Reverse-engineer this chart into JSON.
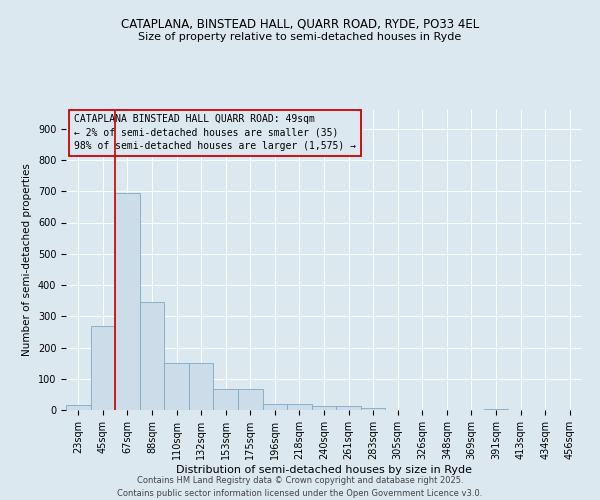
{
  "title_line1": "CATAPLANA, BINSTEAD HALL, QUARR ROAD, RYDE, PO33 4EL",
  "title_line2": "Size of property relative to semi-detached houses in Ryde",
  "xlabel": "Distribution of semi-detached houses by size in Ryde",
  "ylabel": "Number of semi-detached properties",
  "annotation_text": "CATAPLANA BINSTEAD HALL QUARR ROAD: 49sqm\n← 2% of semi-detached houses are smaller (35)\n98% of semi-detached houses are larger (1,575) →",
  "property_size_sqm": 49,
  "bar_fill_color": "#ccdce8",
  "bar_edge_color": "#7aaac8",
  "vline_color": "#cc0000",
  "categories": [
    "23sqm",
    "45sqm",
    "67sqm",
    "88sqm",
    "110sqm",
    "132sqm",
    "153sqm",
    "175sqm",
    "196sqm",
    "218sqm",
    "240sqm",
    "261sqm",
    "283sqm",
    "305sqm",
    "326sqm",
    "348sqm",
    "369sqm",
    "391sqm",
    "413sqm",
    "434sqm",
    "456sqm"
  ],
  "values": [
    15,
    270,
    695,
    345,
    150,
    150,
    68,
    68,
    18,
    18,
    12,
    12,
    7,
    0,
    0,
    0,
    0,
    4,
    0,
    0,
    0
  ],
  "ylim": [
    0,
    960
  ],
  "yticks": [
    0,
    100,
    200,
    300,
    400,
    500,
    600,
    700,
    800,
    900
  ],
  "background_color": "#dce8f0",
  "plot_bg_color": "#dce8f0",
  "footer_line1": "Contains HM Land Registry data © Crown copyright and database right 2025.",
  "footer_line2": "Contains public sector information licensed under the Open Government Licence v3.0.",
  "vline_x": 1.5,
  "title_fontsize": 8.5,
  "subtitle_fontsize": 8,
  "ylabel_fontsize": 7.5,
  "xlabel_fontsize": 8,
  "tick_fontsize": 7,
  "annotation_fontsize": 7,
  "footer_fontsize": 6
}
